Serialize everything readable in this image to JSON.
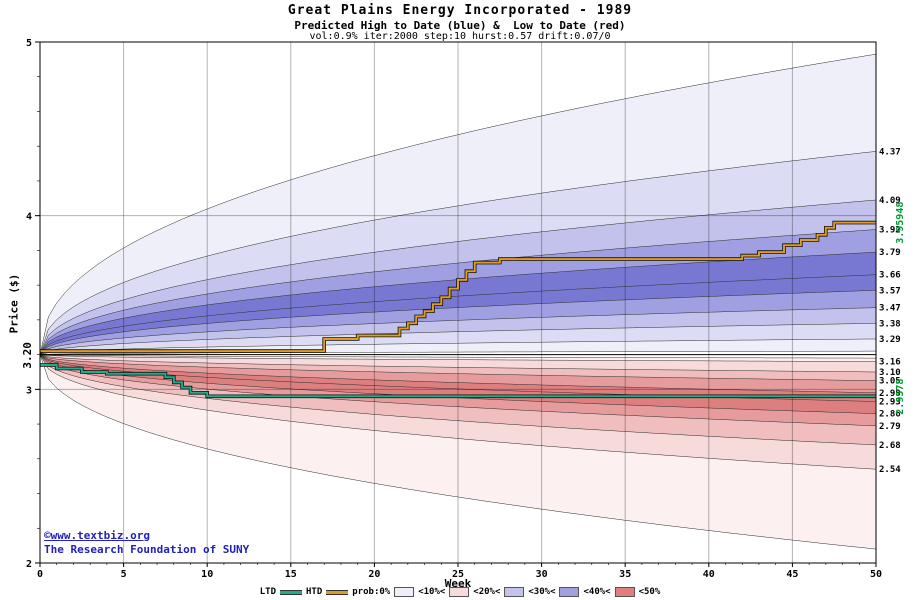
{
  "title": "Great Plains Energy Incorporated - 1989",
  "subtitle": "Predicted High to Date (blue) &  Low to Date (red)",
  "params_line": "vol:0.9% iter:2000 step:10 hurst:0.57 drift:0.07/0",
  "watermark": {
    "line1": "©www.textbiz.org",
    "line2": "The Research Foundation of SUNY"
  },
  "legend": {
    "ltd_label": "LTD",
    "htd_label": "HTD",
    "prob_label": "prob:0%",
    "band_labels": [
      "<10%<",
      "<20%<",
      "<30%<",
      "<40%<",
      "<50%"
    ]
  },
  "chart_data": {
    "type": "area",
    "title": "Great Plains Energy Incorporated - 1989",
    "subtitle": "Predicted High to Date (blue) &  Low to Date (red)",
    "xlabel": "Week",
    "ylabel": "Price ($)",
    "xlim": [
      0,
      50
    ],
    "ylim": [
      2,
      5
    ],
    "xticks": [
      0,
      5,
      10,
      15,
      20,
      25,
      30,
      35,
      40,
      45,
      50
    ],
    "yticks": [
      2,
      3,
      4,
      5
    ],
    "grid": true,
    "legend_position": "bottom",
    "start_price": 3.2,
    "start_price_label": "3.20",
    "shape_power": 0.45,
    "percentile_step": 10,
    "high_fan": {
      "description": "Predicted high-to-date decile boundaries (max/0% outermost to 100% innermost), values at week 50, fanning out from 3.20 at week 0",
      "end_values": [
        4.93,
        4.37,
        4.09,
        3.92,
        3.79,
        3.66,
        3.57,
        3.47,
        3.38,
        3.29,
        3.22
      ]
    },
    "low_fan": {
      "description": "Predicted low-to-date decile boundaries (min/0% outermost to 100% innermost), values at week 50",
      "end_values": [
        2.08,
        2.54,
        2.68,
        2.79,
        2.86,
        2.93,
        2.98,
        3.05,
        3.1,
        3.16,
        3.18
      ]
    },
    "right_axis_labels_high": [
      "4.37",
      "4.09",
      "3.92",
      "3.79",
      "3.66",
      "3.57",
      "3.47",
      "3.38",
      "3.29"
    ],
    "right_axis_labels_low": [
      "3.16",
      "3.10",
      "3.05",
      "2.98",
      "2.93",
      "2.86",
      "2.79",
      "2.68",
      "2.54"
    ],
    "htd_final_label": "3.95948",
    "ltd_final_label": "2.9578",
    "htd_final_value": 3.95948,
    "ltd_final_value": 2.9578,
    "htd_line": {
      "name": "HTD",
      "color": "#dd9c22",
      "points": [
        [
          0,
          3.22
        ],
        [
          17,
          3.22
        ],
        [
          17,
          3.29
        ],
        [
          19,
          3.29
        ],
        [
          19,
          3.31
        ],
        [
          21.5,
          3.31
        ],
        [
          21.5,
          3.35
        ],
        [
          22,
          3.35
        ],
        [
          22,
          3.38
        ],
        [
          22.5,
          3.38
        ],
        [
          22.5,
          3.42
        ],
        [
          23,
          3.42
        ],
        [
          23,
          3.45
        ],
        [
          23.5,
          3.45
        ],
        [
          23.5,
          3.49
        ],
        [
          24,
          3.49
        ],
        [
          24,
          3.53
        ],
        [
          24.5,
          3.53
        ],
        [
          24.5,
          3.58
        ],
        [
          25,
          3.58
        ],
        [
          25,
          3.63
        ],
        [
          25.5,
          3.63
        ],
        [
          25.5,
          3.68
        ],
        [
          26,
          3.68
        ],
        [
          26,
          3.73
        ],
        [
          27.5,
          3.73
        ],
        [
          27.5,
          3.75
        ],
        [
          42,
          3.75
        ],
        [
          42,
          3.77
        ],
        [
          43,
          3.77
        ],
        [
          43,
          3.79
        ],
        [
          44.5,
          3.79
        ],
        [
          44.5,
          3.83
        ],
        [
          45.5,
          3.83
        ],
        [
          45.5,
          3.86
        ],
        [
          46.5,
          3.86
        ],
        [
          46.5,
          3.89
        ],
        [
          47,
          3.89
        ],
        [
          47,
          3.93
        ],
        [
          47.5,
          3.93
        ],
        [
          47.5,
          3.96
        ],
        [
          50,
          3.96
        ]
      ]
    },
    "ltd_line": {
      "name": "LTD",
      "color": "#1fae8c",
      "points": [
        [
          0,
          3.14
        ],
        [
          1,
          3.14
        ],
        [
          1,
          3.12
        ],
        [
          2.5,
          3.12
        ],
        [
          2.5,
          3.1
        ],
        [
          4,
          3.1
        ],
        [
          4,
          3.09
        ],
        [
          7.5,
          3.09
        ],
        [
          7.5,
          3.07
        ],
        [
          8,
          3.07
        ],
        [
          8,
          3.04
        ],
        [
          8.5,
          3.04
        ],
        [
          8.5,
          3.01
        ],
        [
          9,
          3.01
        ],
        [
          9,
          2.98
        ],
        [
          10,
          2.98
        ],
        [
          10,
          2.96
        ],
        [
          50,
          2.96
        ]
      ]
    },
    "band_colors": {
      "blue": [
        "#efeffa",
        "#dcdcf4",
        "#c2c2ec",
        "#9f9fe1",
        "#7878d2"
      ],
      "red": [
        "#fcf0f0",
        "#f7dada",
        "#f0bebe",
        "#e69c9c",
        "#dd7f7f"
      ]
    },
    "legend_swatch_colors": [
      "#efeffa",
      "#f7dada",
      "#c2c2ec",
      "#9f9fe1",
      "#dd7f7f"
    ],
    "accent_colors": {
      "start_line": "#000000",
      "right_label": "#000000",
      "final_label_green": "#009933",
      "watermark_blue": "#2121bd"
    }
  }
}
